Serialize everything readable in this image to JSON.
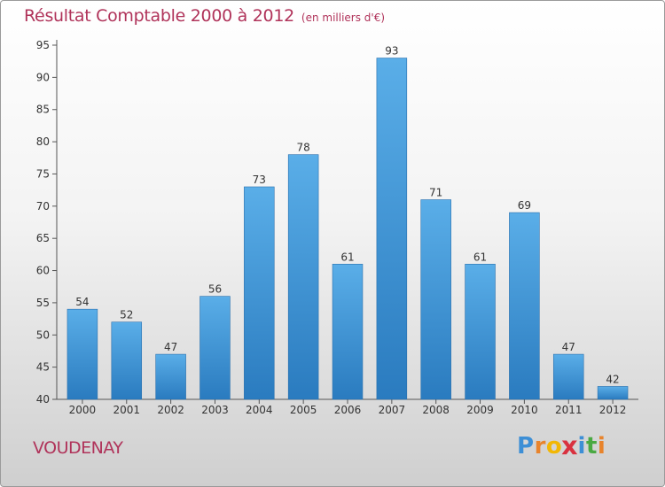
{
  "colors": {
    "accent": "#b0335a",
    "bar_light": "#5aaee8",
    "bar_dark": "#2a7bbf",
    "axis": "#555555",
    "grid": "#d8d8d8"
  },
  "footer": {
    "city": "VOUDENAY",
    "logo_letters": [
      "P",
      "r",
      "o",
      "x",
      "i",
      "t",
      "i"
    ],
    "logo_colors": [
      "#3d8fd6",
      "#e8842c",
      "#f2b705",
      "#d9313f",
      "#3d8fd6",
      "#49a942",
      "#e8842c"
    ]
  },
  "chart_data": {
    "type": "bar",
    "title": "Résultat Comptable 2000 à 2012",
    "unit_label": "(en milliers d'€)",
    "xlabel": "",
    "ylabel": "",
    "categories": [
      "2000",
      "2001",
      "2002",
      "2003",
      "2004",
      "2005",
      "2006",
      "2007",
      "2008",
      "2009",
      "2010",
      "2011",
      "2012"
    ],
    "values": [
      54,
      52,
      47,
      56,
      73,
      78,
      61,
      93,
      71,
      61,
      69,
      47,
      42
    ],
    "ylim": [
      40,
      95
    ],
    "yticks": [
      40,
      45,
      50,
      55,
      60,
      65,
      70,
      75,
      80,
      85,
      90,
      95
    ],
    "grid": false,
    "legend": "none"
  }
}
